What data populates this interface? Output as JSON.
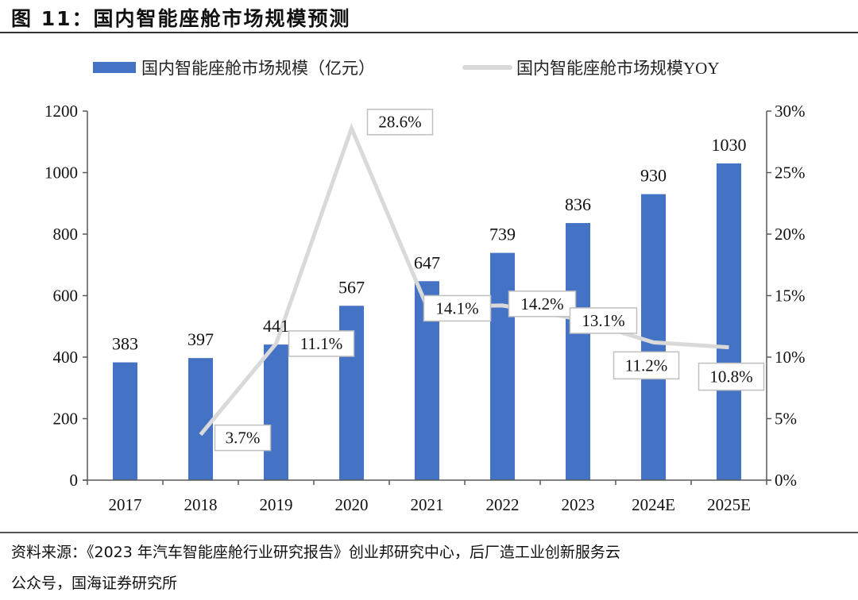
{
  "header": {
    "title": "图 11：国内智能座舱市场规模预测"
  },
  "footer": {
    "source_line1": "资料来源：《2023 年汽车智能座舱行业研究报告》创业邦研究中心，后厂造工业创新服务云",
    "source_line2": "公众号，国海证券研究所"
  },
  "colors": {
    "bar": "#4472C4",
    "line": "#D9D9D9",
    "axis": "#595959",
    "callout_border": "#BFBFBF"
  },
  "chart_data": {
    "type": "bar+line",
    "title": "国内智能座舱市场规模预测",
    "categories": [
      "2017",
      "2018",
      "2019",
      "2020",
      "2021",
      "2022",
      "2023",
      "2024E",
      "2025E"
    ],
    "series": [
      {
        "name": "国内智能座舱市场规模（亿元）",
        "type": "bar",
        "axis": "left",
        "values": [
          383,
          397,
          441,
          567,
          647,
          739,
          836,
          930,
          1030
        ],
        "labels": [
          "383",
          "397",
          "441",
          "567",
          "647",
          "739",
          "836",
          "930",
          "1030"
        ]
      },
      {
        "name": "国内智能座舱市场规模YOY",
        "type": "line",
        "axis": "right",
        "values": [
          null,
          3.7,
          11.1,
          28.6,
          14.1,
          14.2,
          13.1,
          11.2,
          10.8
        ],
        "labels": [
          null,
          "3.7%",
          "11.1%",
          "28.6%",
          "14.1%",
          "14.2%",
          "13.1%",
          "11.2%",
          "10.8%"
        ]
      }
    ],
    "left_axis": {
      "ylim": [
        0,
        1200
      ],
      "ticks": [
        0,
        200,
        400,
        600,
        800,
        1000,
        1200
      ],
      "tick_labels": [
        "0",
        "200",
        "400",
        "600",
        "800",
        "1000",
        "1200"
      ]
    },
    "right_axis": {
      "ylim": [
        0,
        30
      ],
      "ticks": [
        0,
        5,
        10,
        15,
        20,
        25,
        30
      ],
      "tick_labels": [
        "0%",
        "5%",
        "10%",
        "15%",
        "20%",
        "25%",
        "30%"
      ]
    },
    "xlabel": "",
    "ylabel": "",
    "grid": false,
    "legend": {
      "position": "top",
      "entries": [
        "国内智能座舱市场规模（亿元）",
        "国内智能座舱市场规模YOY"
      ]
    }
  }
}
